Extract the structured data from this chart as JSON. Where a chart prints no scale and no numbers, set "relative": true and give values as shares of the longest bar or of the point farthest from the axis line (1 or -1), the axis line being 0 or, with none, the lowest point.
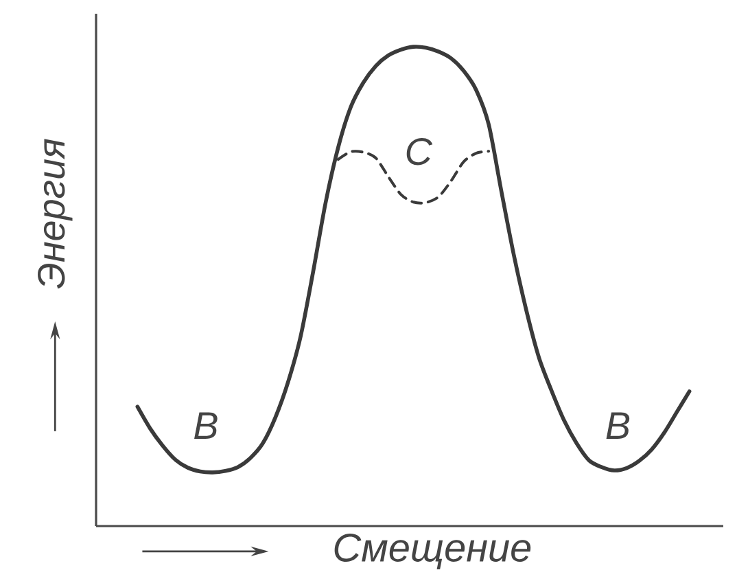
{
  "chart_data": {
    "type": "line",
    "xlabel": "Смещение",
    "ylabel": "Энергия",
    "relative": true,
    "marker": "none",
    "categories": [
      null,
      null,
      null,
      null,
      null,
      null,
      null,
      null,
      null,
      null,
      null,
      null,
      null,
      null,
      null,
      null,
      null,
      null,
      null,
      null,
      null,
      null,
      null,
      null,
      null,
      null,
      null,
      null,
      null,
      null,
      null,
      null,
      null,
      null,
      null,
      null,
      null,
      null,
      null,
      null,
      null,
      null,
      null,
      null,
      null
    ],
    "series": [
      {
        "color": "#3a3a3a",
        "line_style": "solid",
        "values": [
          0.249,
          0.204,
          0.168,
          0.139,
          0.122,
          0.114,
          0.112,
          0.115,
          0.123,
          0.142,
          0.173,
          0.227,
          0.3,
          0.395,
          0.53,
          0.675,
          0.79,
          0.874,
          0.925,
          0.96,
          0.982,
          0.994,
          1,
          0.998,
          0.99,
          0.976,
          0.95,
          0.91,
          0.838,
          0.7,
          0.566,
          0.45,
          0.352,
          0.283,
          0.221,
          0.173,
          0.137,
          0.123,
          0.116,
          0.121,
          0.136,
          0.16,
          0.195,
          0.238,
          0.281
        ]
      },
      {
        "color": "#3a3a3a",
        "line_style": "dashed",
        "values": [
          null,
          null,
          null,
          null,
          null,
          null,
          null,
          null,
          null,
          null,
          null,
          null,
          null,
          null,
          null,
          null,
          0.765,
          0.781,
          0.78,
          0.768,
          0.729,
          0.692,
          0.676,
          0.675,
          0.687,
          0.72,
          0.76,
          0.778,
          0.782,
          null,
          null,
          null,
          null,
          null,
          null,
          null,
          null,
          null,
          null,
          null,
          null,
          null,
          null,
          null,
          null
        ]
      }
    ],
    "annotations": [
      "В",
      "В",
      "С"
    ]
  }
}
